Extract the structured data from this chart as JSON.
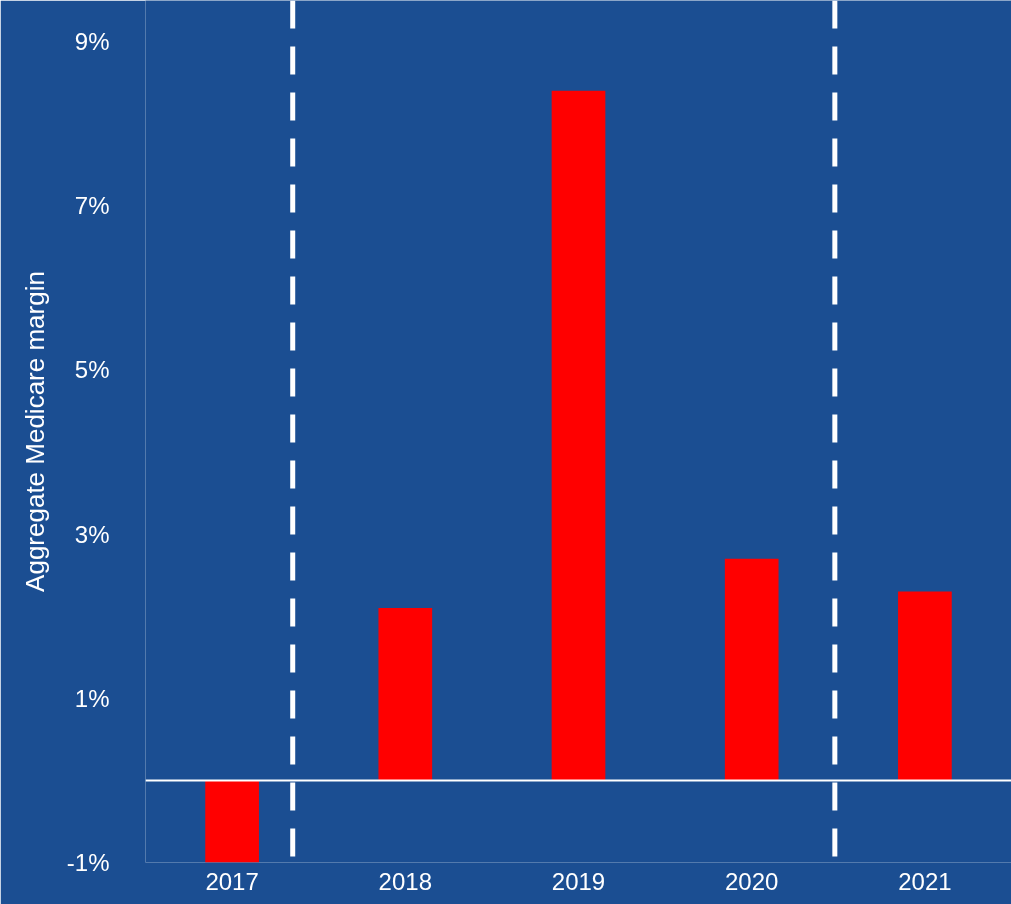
{
  "chart_data": {
    "type": "bar",
    "ylabel": "Aggregate Medicare margin",
    "x": [
      2017,
      2018,
      2019,
      2020,
      2021
    ],
    "values": [
      -1.0,
      2.1,
      8.4,
      2.7,
      2.3
    ],
    "color": "#ff0000",
    "xlim": [
      2016.5,
      2021.5
    ],
    "xticks": [
      2017,
      2018,
      2019,
      2020,
      2021
    ],
    "ylim": [
      -1,
      9.5
    ],
    "yticks": [
      {
        "value": -1,
        "label": "-1%"
      },
      {
        "value": 1,
        "label": "1%"
      },
      {
        "value": 3,
        "label": "3%"
      },
      {
        "value": 5,
        "label": "5%"
      },
      {
        "value": 7,
        "label": "7%"
      },
      {
        "value": 9,
        "label": "9%"
      }
    ],
    "ref_lines": [
      {
        "axis": "y",
        "value": 0,
        "color": "#ffffff",
        "line_style": "solid"
      },
      {
        "axis": "x",
        "value": 2017.35,
        "color": "#ffffff",
        "line_style": "dashed"
      },
      {
        "axis": "x",
        "value": 2020.48,
        "color": "#ffffff",
        "line_style": "dashed"
      }
    ],
    "grid": false
  }
}
